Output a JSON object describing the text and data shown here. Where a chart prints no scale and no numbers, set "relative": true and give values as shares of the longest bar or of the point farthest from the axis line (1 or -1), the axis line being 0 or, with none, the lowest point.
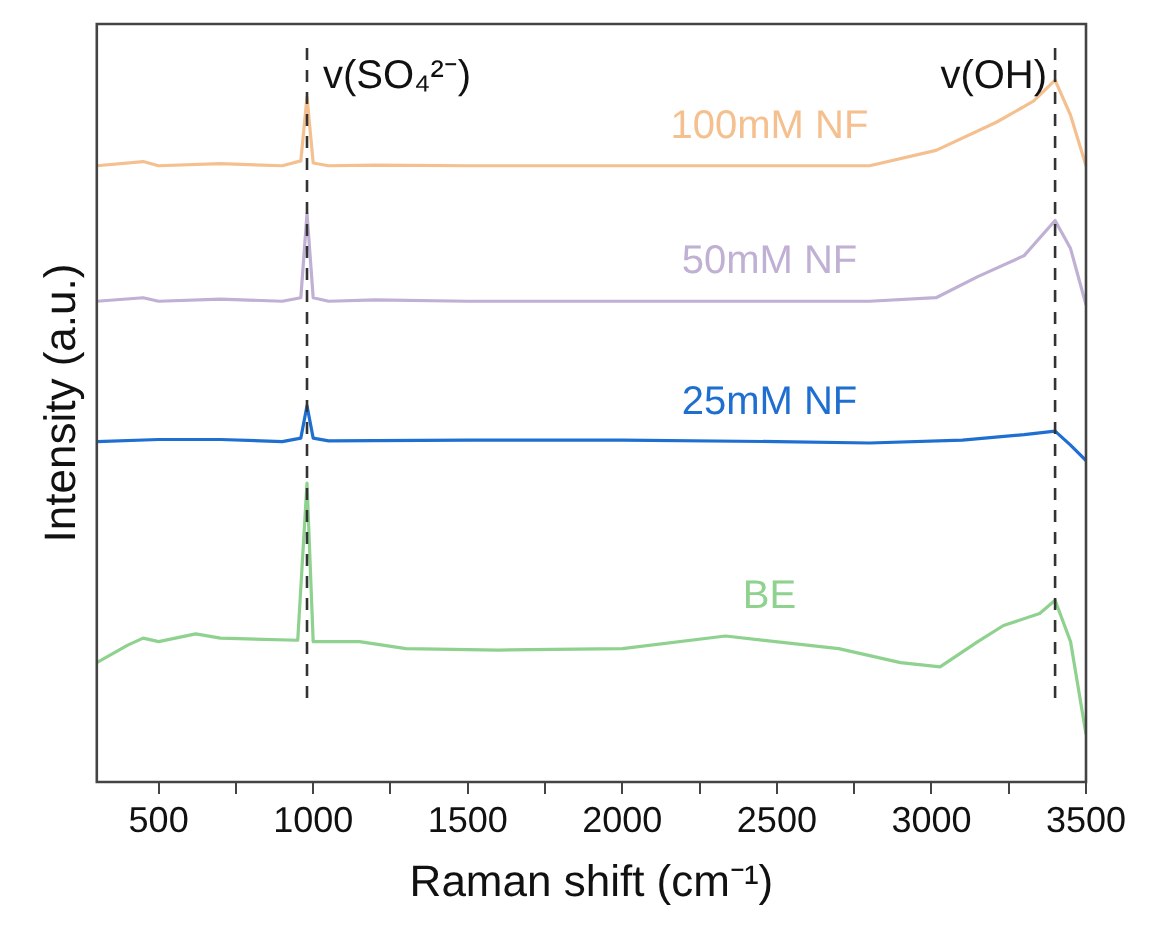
{
  "chart_data": {
    "type": "line",
    "relative": true,
    "xlabel": "Raman shift (cm⁻¹)",
    "ylabel": "Intensity (a.u.)",
    "xlim": [
      300,
      3500
    ],
    "xticks": [
      500,
      {
        "value": 750,
        "label": null
      },
      1000,
      {
        "value": 1250,
        "label": null
      },
      1500,
      {
        "value": 1750,
        "label": null
      },
      2000,
      {
        "value": 2250,
        "label": null
      },
      2500,
      {
        "value": 2750,
        "label": null
      },
      3000,
      {
        "value": 3250,
        "label": null
      },
      3500
    ],
    "tick_labels": "x",
    "grid": false,
    "legend": false,
    "marker": "none",
    "line_style": "solid",
    "ref_lines": [
      {
        "axis": "x",
        "value": 980,
        "label": "v(SO₄²⁻)",
        "color": "#333333",
        "line_style": "dashed"
      },
      {
        "axis": "x",
        "value": 3400,
        "label": "v(OH)",
        "color": "#333333",
        "line_style": "dashed"
      }
    ],
    "series": [
      {
        "name": "100mM NF",
        "color": "#f5c08f",
        "x": [
          300,
          450,
          500,
          700,
          900,
          960,
          980,
          1000,
          1050,
          1200,
          1500,
          2000,
          2500,
          2800,
          3015,
          3210,
          3330,
          3400,
          3450,
          3500
        ],
        "values": [
          0.878,
          0.884,
          0.878,
          0.881,
          0.878,
          0.885,
          0.976,
          0.882,
          0.878,
          0.879,
          0.878,
          0.878,
          0.878,
          0.878,
          0.9,
          0.94,
          0.97,
          1.0,
          0.95,
          0.878
        ]
      },
      {
        "name": "50mM NF",
        "color": "#bfb0d4",
        "x": [
          300,
          450,
          500,
          700,
          900,
          960,
          980,
          1000,
          1050,
          1200,
          1500,
          2000,
          2500,
          2800,
          3015,
          3150,
          3300,
          3400,
          3450,
          3500
        ],
        "values": [
          0.685,
          0.69,
          0.685,
          0.688,
          0.685,
          0.69,
          0.81,
          0.69,
          0.685,
          0.687,
          0.685,
          0.685,
          0.685,
          0.685,
          0.69,
          0.72,
          0.75,
          0.8,
          0.76,
          0.68
        ]
      },
      {
        "name": "25mM NF",
        "color": "#1f6fd1",
        "x": [
          300,
          500,
          700,
          900,
          960,
          980,
          1000,
          1050,
          1500,
          2000,
          2500,
          2800,
          3100,
          3300,
          3400,
          3450,
          3500
        ],
        "values": [
          0.485,
          0.488,
          0.488,
          0.485,
          0.49,
          0.536,
          0.49,
          0.486,
          0.487,
          0.487,
          0.485,
          0.483,
          0.487,
          0.495,
          0.5,
          0.48,
          0.458
        ]
      },
      {
        "name": "BE",
        "color": "#8fd18f",
        "x": [
          300,
          400,
          450,
          500,
          620,
          700,
          950,
          980,
          1000,
          1050,
          1150,
          1300,
          1600,
          2000,
          2334,
          2700,
          2900,
          3028,
          3150,
          3233,
          3350,
          3400,
          3450,
          3500
        ],
        "values": [
          0.17,
          0.195,
          0.205,
          0.2,
          0.211,
          0.205,
          0.202,
          0.426,
          0.2,
          0.2,
          0.2,
          0.19,
          0.188,
          0.19,
          0.208,
          0.19,
          0.17,
          0.164,
          0.2,
          0.223,
          0.24,
          0.259,
          0.2,
          0.068
        ]
      }
    ]
  }
}
